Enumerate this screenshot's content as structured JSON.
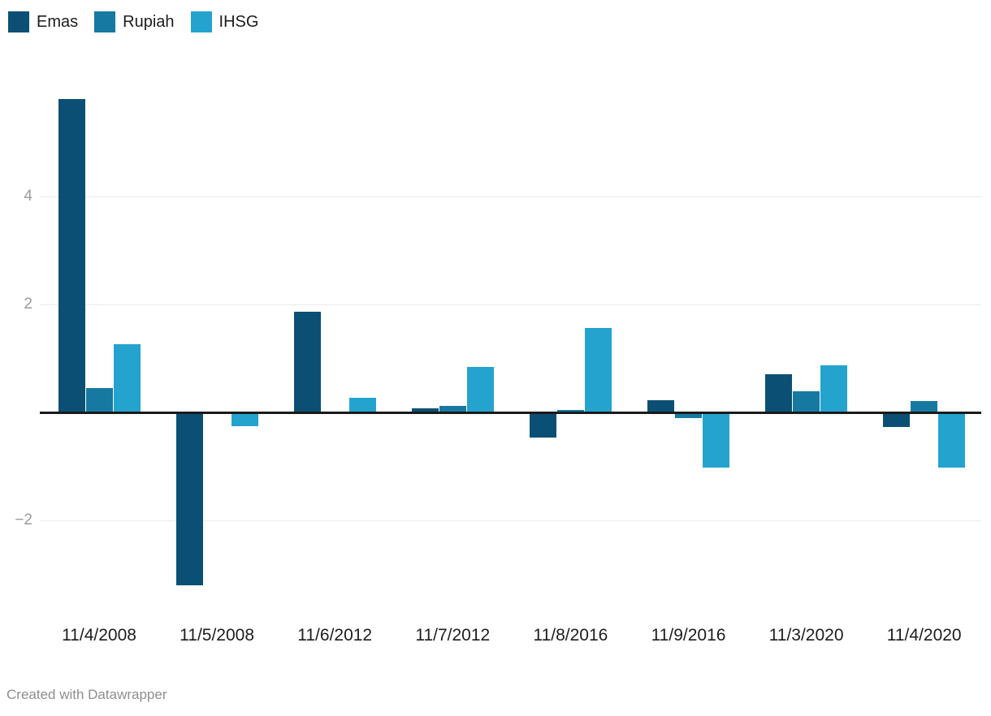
{
  "chart_data": {
    "type": "bar",
    "title": "",
    "categories": [
      "11/4/2008",
      "11/5/2008",
      "11/6/2012",
      "11/7/2012",
      "11/8/2016",
      "11/9/2016",
      "11/3/2020",
      "11/4/2020"
    ],
    "series": [
      {
        "name": "Emas",
        "color": "#0b5074",
        "values": [
          5.81,
          -3.21,
          1.87,
          0.07,
          -0.47,
          0.22,
          0.71,
          -0.27
        ]
      },
      {
        "name": "Rupiah",
        "color": "#1679a2",
        "values": [
          0.45,
          0,
          0,
          0.12,
          0.04,
          -0.11,
          0.39,
          0.21
        ]
      },
      {
        "name": "IHSG",
        "color": "#24a3cf",
        "values": [
          1.26,
          -0.26,
          0.27,
          0.84,
          1.57,
          -1.02,
          0.87,
          -1.02
        ]
      }
    ],
    "y_ticks": [
      {
        "label": "4",
        "value": 4
      },
      {
        "label": "2",
        "value": 2
      },
      {
        "label": "−2",
        "value": -2
      }
    ],
    "xlabel": "",
    "ylabel": "",
    "ylim": [
      -3.3,
      6.1
    ],
    "grid": true,
    "legend_position": "top-left",
    "zero_line_color": "#1a1a1a",
    "gridline_color": "#eaeaea"
  },
  "footer": {
    "credit": "Created with Datawrapper"
  }
}
